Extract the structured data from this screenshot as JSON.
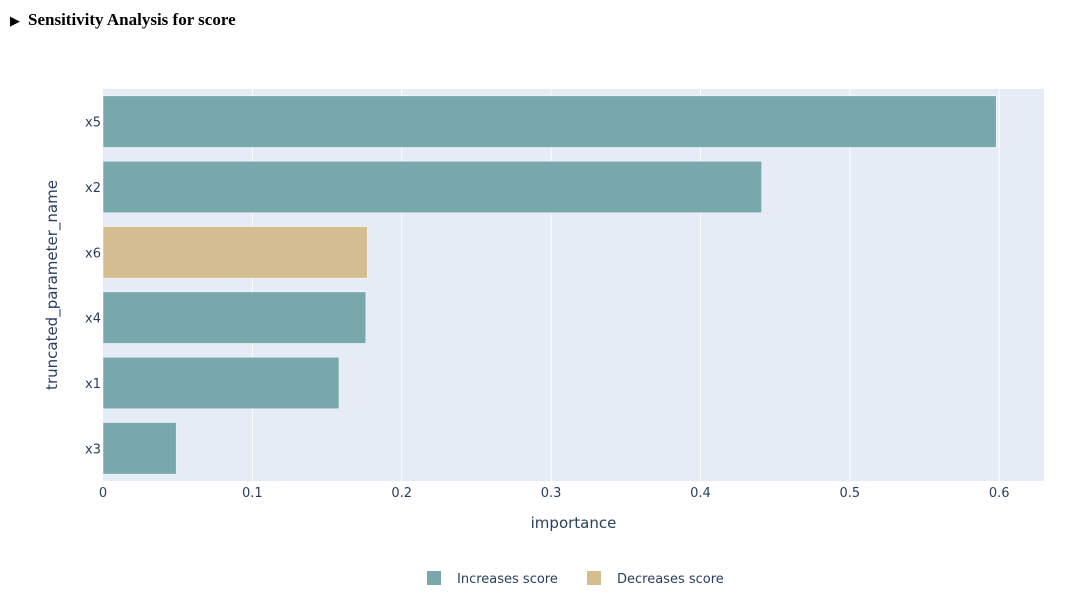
{
  "header": {
    "toggle_icon": "▶",
    "title": "Sensitivity Analysis for score"
  },
  "colors": {
    "increases": "#78a8ab",
    "decreases": "#d5bd92",
    "plot_bg": "#e5ecf6",
    "grid": "#ffffff",
    "text": "#2a3f5f"
  },
  "chart_data": {
    "type": "bar",
    "orientation": "horizontal",
    "categories": [
      "x5",
      "x2",
      "x6",
      "x4",
      "x1",
      "x3"
    ],
    "values": [
      0.598,
      0.441,
      0.177,
      0.176,
      0.158,
      0.049
    ],
    "effect": [
      "increases",
      "increases",
      "decreases",
      "increases",
      "increases",
      "increases"
    ],
    "xlabel": "importance",
    "ylabel": "truncated_parameter_name",
    "xlim": [
      0,
      0.63
    ],
    "xticks": [
      0,
      0.1,
      0.2,
      0.3,
      0.4,
      0.5,
      0.6
    ],
    "xtick_labels": [
      "0",
      "0.1",
      "0.2",
      "0.3",
      "0.4",
      "0.5",
      "0.6"
    ],
    "grid": true,
    "legend_position": "bottom-center",
    "legend": [
      {
        "key": "increases",
        "label": "Increases score"
      },
      {
        "key": "decreases",
        "label": "Decreases score"
      }
    ]
  }
}
